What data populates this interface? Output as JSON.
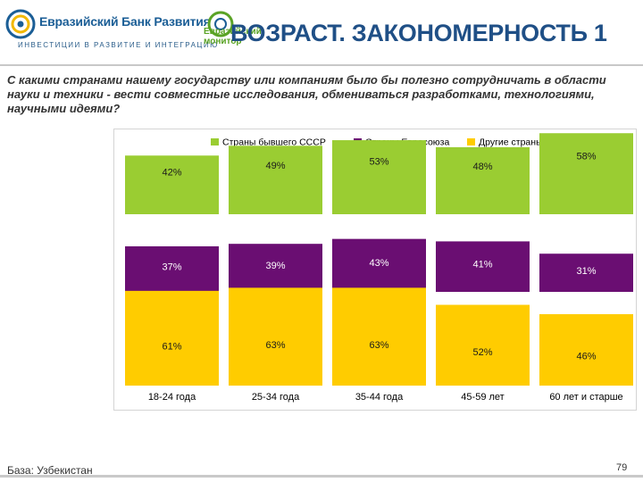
{
  "header": {
    "bank_name": "Евразийский Банк Развития",
    "bank_tagline": "ИНВЕСТИЦИИ В РАЗВИТИЕ И ИНТЕГРАЦИЮ",
    "monitor_line1": "Евразийский",
    "monitor_line2": "монитор",
    "title": "ВОЗРАСТ. ЗАКОНОМЕРНОСТЬ 1"
  },
  "question": "С какими странами нашему государству или компаниям было бы полезно сотрудничать в области науки и техники - вести совместные исследования, обмениваться разработками, технологиями, научными идеями?",
  "footer": {
    "base": "База: Узбекистан",
    "page": "79"
  },
  "colors": {
    "green": "#9acd32",
    "purple": "#6a0e72",
    "yellow": "#ffcc00",
    "title": "#1f4f86"
  },
  "chart_data": {
    "type": "bar",
    "layout": "small-multiples",
    "unit": "%",
    "categories": [
      "18-24 года",
      "25-34 года",
      "35-44 года",
      "45-59 лет",
      "60 лет и старше"
    ],
    "series": [
      {
        "name": "Страны бывшего СССР",
        "color": "#9acd32",
        "values": [
          42,
          49,
          53,
          48,
          58
        ]
      },
      {
        "name": "Страны Евросоюза",
        "color": "#6a0e72",
        "values": [
          37,
          39,
          43,
          41,
          31
        ]
      },
      {
        "name": "Другие страны",
        "color": "#ffcc00",
        "values": [
          61,
          63,
          63,
          52,
          46
        ]
      }
    ],
    "legend": "top",
    "grid": false
  }
}
